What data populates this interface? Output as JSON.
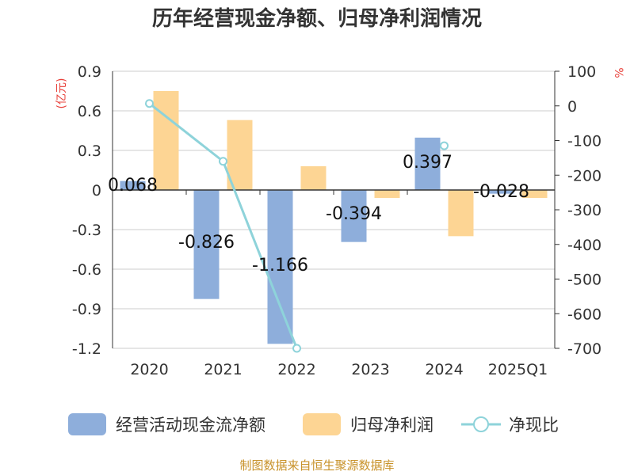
{
  "title": "历年经营现金净额、归母净利润情况",
  "footer": "制图数据来自恒生聚源数据库",
  "colors": {
    "cash": "#8eaedb",
    "profit": "#fdd594",
    "ratio": "#8ed3da",
    "axis": "#333333",
    "grid": "#cccccc",
    "unit": "#e8403a",
    "footer": "#c8922a"
  },
  "legend": {
    "cash": "经营活动现金流净额",
    "profit": "归母净利润",
    "ratio": "净现比"
  },
  "chart_data": {
    "type": "bar",
    "categories": [
      "2020",
      "2021",
      "2022",
      "2023",
      "2024",
      "2025Q1"
    ],
    "series": [
      {
        "name": "经营活动现金流净额",
        "type": "bar",
        "axis": "left",
        "values": [
          0.068,
          -0.826,
          -1.166,
          -0.394,
          0.397,
          -0.028
        ],
        "labels": [
          "0.068",
          "-0.826",
          "-1.166",
          "-0.394",
          "0.397",
          "-0.028"
        ]
      },
      {
        "name": "归母净利润",
        "type": "bar",
        "axis": "left",
        "values": [
          0.75,
          0.53,
          0.18,
          -0.06,
          -0.35,
          -0.06
        ]
      },
      {
        "name": "净现比",
        "type": "line",
        "axis": "right",
        "values": [
          7,
          -160,
          -700,
          null,
          -115,
          null
        ]
      }
    ],
    "y_left": {
      "unit": "(亿元)",
      "ticks": [
        "0.9",
        "0.6",
        "0.3",
        "0",
        "-0.3",
        "-0.6",
        "-0.9",
        "-1.2"
      ],
      "range": [
        -1.2,
        0.9
      ]
    },
    "y_right": {
      "unit": "%",
      "ticks": [
        "100",
        "0",
        "-100",
        "-200",
        "-300",
        "-400",
        "-500",
        "-600",
        "-700"
      ],
      "range": [
        -700,
        100
      ]
    },
    "grid": true,
    "legend_position": "bottom"
  }
}
